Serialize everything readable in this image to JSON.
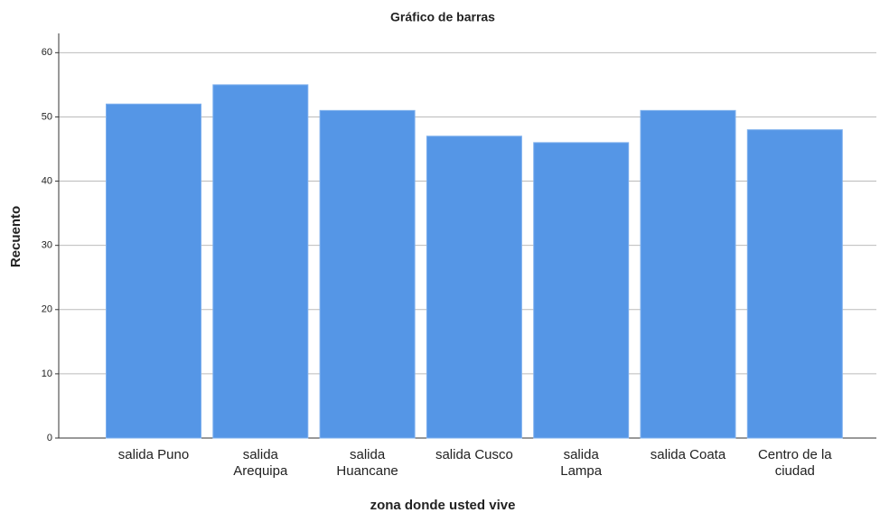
{
  "chart_data": {
    "type": "bar",
    "title": "Gráfico de barras",
    "x_label": "zona donde usted vive",
    "y_label": "Recuento",
    "categories": [
      [
        "salida Puno"
      ],
      [
        "salida",
        "Arequipa"
      ],
      [
        "salida",
        "Huancane"
      ],
      [
        "salida Cusco"
      ],
      [
        "salida",
        "Lampa"
      ],
      [
        "salida Coata"
      ],
      [
        "Centro de la",
        "ciudad"
      ]
    ],
    "values": [
      52,
      55,
      51,
      47,
      46,
      51,
      48
    ],
    "color": "#5596e6",
    "ylim": [
      0,
      63
    ],
    "yticks": [
      0,
      10,
      20,
      30,
      40,
      50,
      60
    ],
    "grid": true
  }
}
